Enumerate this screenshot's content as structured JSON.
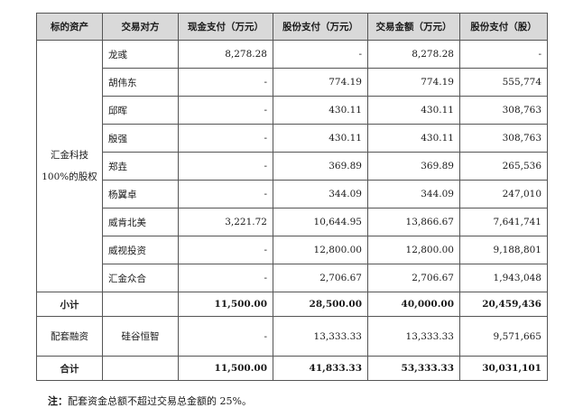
{
  "header": [
    "标的资产",
    "交易对方",
    "现金支付（万元）",
    "股份支付（万元）",
    "交易金额（万元）",
    "股份支付（股）"
  ],
  "asset_label": "汇金科技100%的股权",
  "rows": [
    {
      "party": "龙彧",
      "cash": "8,278.28",
      "share_amt": "-",
      "total": "8,278.28",
      "shares": "-"
    },
    {
      "party": "胡伟东",
      "cash": "-",
      "share_amt": "774.19",
      "total": "774.19",
      "shares": "555,774"
    },
    {
      "party": "邱晖",
      "cash": "-",
      "share_amt": "430.11",
      "total": "430.11",
      "shares": "308,763"
    },
    {
      "party": "殷强",
      "cash": "-",
      "share_amt": "430.11",
      "total": "430.11",
      "shares": "308,763"
    },
    {
      "party": "郑垚",
      "cash": "-",
      "share_amt": "369.89",
      "total": "369.89",
      "shares": "265,536"
    },
    {
      "party": "杨翼卓",
      "cash": "-",
      "share_amt": "344.09",
      "total": "344.09",
      "shares": "247,010"
    },
    {
      "party": "威肯北美",
      "cash": "3,221.72",
      "share_amt": "10,644.95",
      "total": "13,866.67",
      "shares": "7,641,741"
    },
    {
      "party": "威视投资",
      "cash": "-",
      "share_amt": "12,800.00",
      "total": "12,800.00",
      "shares": "9,188,801"
    },
    {
      "party": "汇金众合",
      "cash": "-",
      "share_amt": "2,706.67",
      "total": "2,706.67",
      "shares": "1,943,048"
    }
  ],
  "subtotal": {
    "label": "小计",
    "party": "",
    "cash": "11,500.00",
    "share_amt": "28,500.00",
    "total": "40,000.00",
    "shares": "20,459,436"
  },
  "supporting": {
    "label": "配套融资",
    "party": "硅谷恒智",
    "cash": "-",
    "share_amt": "13,333.33",
    "total": "13,333.33",
    "shares": "9,571,665"
  },
  "grand_total": {
    "label": "合计",
    "party": "",
    "cash": "11,500.00",
    "share_amt": "41,833.33",
    "total": "53,333.33",
    "shares": "30,031,101"
  },
  "note": {
    "label": "注：",
    "text": "配套资金总额不超过交易总金额的 25%。"
  }
}
